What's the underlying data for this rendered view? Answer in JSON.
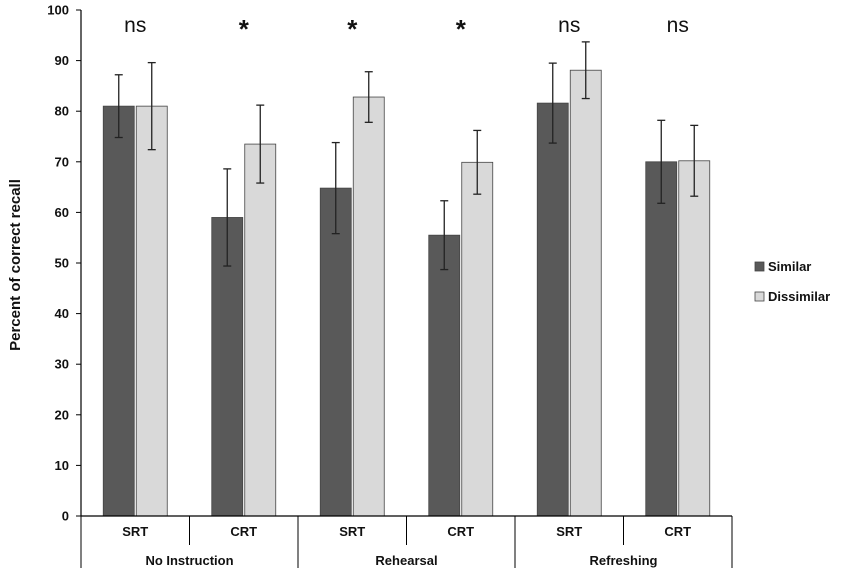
{
  "chart_data": {
    "type": "bar",
    "ylabel": "Percent of correct recall",
    "ylim": [
      0,
      100
    ],
    "yticks": [
      0,
      10,
      20,
      30,
      40,
      50,
      60,
      70,
      80,
      90,
      100
    ],
    "groups": [
      "No Instruction",
      "Rehearsal",
      "Refreshing"
    ],
    "categories": [
      "SRT",
      "CRT",
      "SRT",
      "CRT",
      "SRT",
      "CRT"
    ],
    "significance": [
      "ns",
      "*",
      "*",
      "*",
      "ns",
      "ns"
    ],
    "series": [
      {
        "name": "Similar",
        "color": "#595959",
        "values": [
          81,
          59,
          64.8,
          55.5,
          81.6,
          70
        ],
        "error": [
          6.2,
          9.6,
          9,
          6.8,
          7.9,
          8.2
        ]
      },
      {
        "name": "Dissimilar",
        "color": "#d9d9d9",
        "values": [
          81,
          73.5,
          82.8,
          69.9,
          88.1,
          70.2
        ],
        "error": [
          8.6,
          7.7,
          5,
          6.3,
          5.6,
          7
        ]
      }
    ],
    "legend_position": "right"
  }
}
